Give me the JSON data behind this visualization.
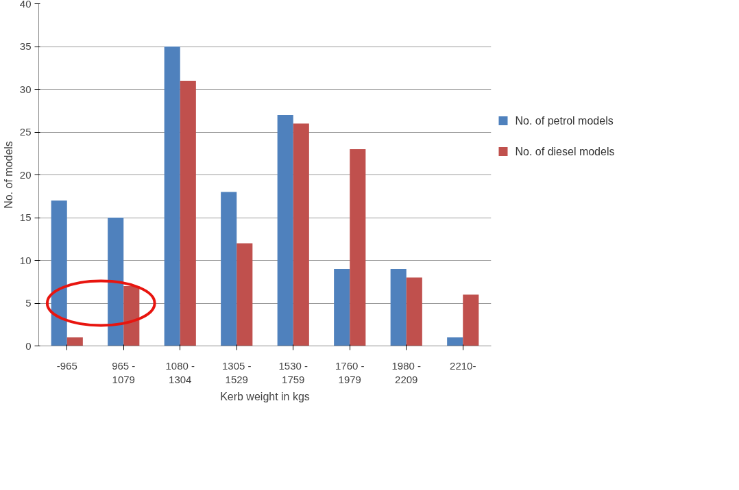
{
  "chart_data": {
    "type": "bar",
    "xlabel": "Kerb weight in kgs",
    "ylabel": "No. of models",
    "categories": [
      "-965",
      "965 -\n1079",
      "1080 -\n1304",
      "1305 -\n1529",
      "1530 -\n1759",
      "1760 -\n1979",
      "1980 -\n2209",
      "2210-"
    ],
    "series": [
      {
        "name": "No. of petrol models",
        "color": "#4f81bd",
        "values": [
          17,
          15,
          35,
          18,
          27,
          9,
          9,
          1
        ]
      },
      {
        "name": "No. of diesel models",
        "color": "#c0504d",
        "values": [
          1,
          7,
          31,
          12,
          26,
          23,
          8,
          6
        ]
      }
    ],
    "ylim": [
      0,
      40
    ],
    "yticks": [
      0,
      5,
      10,
      15,
      20,
      25,
      30,
      35,
      40
    ],
    "grid": "y",
    "legend": "right"
  }
}
